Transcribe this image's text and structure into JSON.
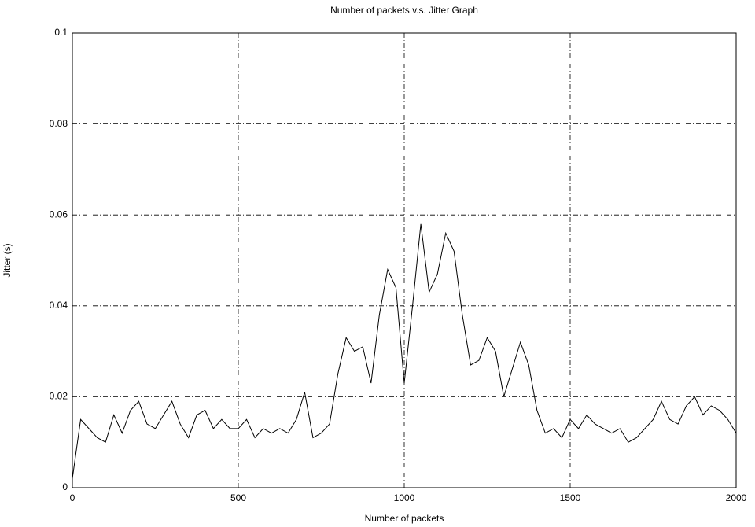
{
  "chart_data": {
    "type": "line",
    "title": "Number of packets v.s. Jitter Graph",
    "x_label": "Number of packets",
    "y_label": "Jitter (s)",
    "x": [
      0,
      25,
      50,
      75,
      100,
      125,
      150,
      175,
      200,
      225,
      250,
      275,
      300,
      325,
      350,
      375,
      400,
      425,
      450,
      475,
      500,
      525,
      550,
      575,
      600,
      625,
      650,
      675,
      700,
      725,
      750,
      775,
      800,
      825,
      850,
      875,
      900,
      925,
      950,
      975,
      1000,
      1025,
      1050,
      1075,
      1100,
      1125,
      1150,
      1175,
      1200,
      1225,
      1250,
      1275,
      1300,
      1325,
      1350,
      1375,
      1400,
      1425,
      1450,
      1475,
      1500,
      1525,
      1550,
      1575,
      1600,
      1625,
      1650,
      1675,
      1700,
      1725,
      1750,
      1775,
      1800,
      1825,
      1850,
      1875,
      1900,
      1925,
      1950,
      1975,
      2000
    ],
    "series": [
      {
        "color": "#000000",
        "values": [
          0.002,
          0.015,
          0.013,
          0.011,
          0.01,
          0.016,
          0.012,
          0.017,
          0.019,
          0.014,
          0.013,
          0.016,
          0.019,
          0.014,
          0.011,
          0.016,
          0.017,
          0.013,
          0.015,
          0.013,
          0.013,
          0.015,
          0.011,
          0.013,
          0.012,
          0.013,
          0.012,
          0.015,
          0.021,
          0.011,
          0.012,
          0.014,
          0.025,
          0.033,
          0.03,
          0.031,
          0.023,
          0.038,
          0.048,
          0.044,
          0.023,
          0.04,
          0.058,
          0.043,
          0.047,
          0.056,
          0.052,
          0.038,
          0.027,
          0.028,
          0.033,
          0.03,
          0.02,
          0.026,
          0.032,
          0.027,
          0.017,
          0.012,
          0.013,
          0.011,
          0.015,
          0.013,
          0.016,
          0.014,
          0.013,
          0.012,
          0.013,
          0.01,
          0.011,
          0.013,
          0.015,
          0.019,
          0.015,
          0.014,
          0.018,
          0.02,
          0.016,
          0.018,
          0.017,
          0.015,
          0.012
        ]
      }
    ],
    "xlim": [
      0,
      2000
    ],
    "xticks": [
      0,
      500,
      1000,
      1500,
      2000
    ],
    "ylim": [
      0,
      0.1
    ],
    "yticks": [
      0,
      0.02,
      0.04,
      0.06,
      0.08,
      0.1
    ],
    "grid": true
  }
}
